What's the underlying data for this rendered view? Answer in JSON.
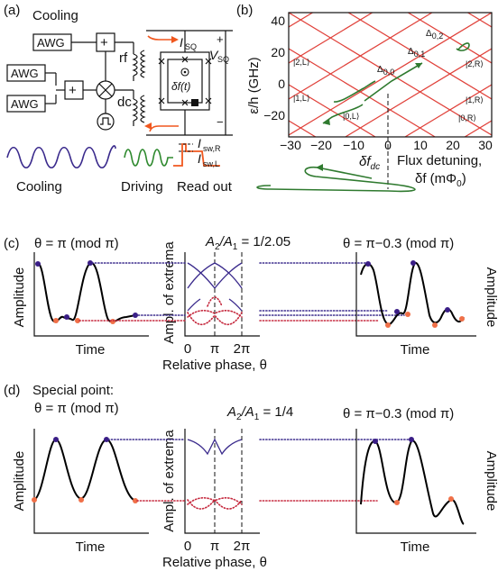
{
  "colors": {
    "cooling_wave": "#3a2a8c",
    "driving_wave": "#2f8a2f",
    "readout_wave": "#f0571e",
    "spectrum_lines": "#e0413a",
    "maxima": "#3a1d86",
    "minima": "#f07048",
    "trajectory": "#2f7a2f"
  },
  "panel_a": {
    "label": "(a)",
    "cooling": "Cooling",
    "awg": "AWG",
    "plus": "+",
    "times": "×",
    "rf": "rf",
    "dc": "dc",
    "isq_i": "I",
    "isq_sub": "SQ",
    "vsq_v": "V",
    "vsq_sub": "SQ",
    "plus_sign": "+",
    "minus_sign": "−",
    "flux": "δf(t)",
    "isw_r_main": "I",
    "isw_r_sub": "sw,R",
    "isw_l_main": "I",
    "isw_l_sub": "sw,L",
    "wave_labels": [
      "Cooling",
      "Driving",
      "Read out"
    ]
  },
  "panel_b": {
    "label": "(b)",
    "ylabel": "ε/h  (GHz)",
    "yticks": [
      "40",
      "20",
      "0",
      "−20"
    ],
    "xticks": [
      "−30",
      "−20",
      "−10",
      "0",
      "10",
      "20",
      "30"
    ],
    "xlabel_line1": "Flux detuning,",
    "xlabel_line2": "δf (mΦ",
    "xlabel_sub": "0",
    "xlabel_end": ")",
    "dfdc_main": "δf",
    "dfdc_sub": "dc",
    "delta_00": "Δ",
    "delta_00_sub": "0,0",
    "delta_01": "Δ",
    "delta_01_sub": "0,1",
    "delta_02": "Δ",
    "delta_02_sub": "0,2",
    "states": [
      "|2,L⟩",
      "|2,R⟩",
      "|1,L⟩",
      "|1,R⟩",
      "|0,L⟩",
      "|0,R⟩"
    ]
  },
  "panel_c": {
    "label": "(c)",
    "left_title": "θ = π  (mod π)",
    "center_title_a": "A",
    "center_title_sub2": "2",
    "center_title_slash": "/A",
    "center_title_sub1": "1",
    "center_title_value": " = 1/2.05",
    "right_title": "θ = π−0.3  (mod π)",
    "ylabel_left": "Amplitude",
    "ylabel_center": "Ampl. of extrema",
    "ylabel_right": "Amplitude",
    "xlabel_left": "Time",
    "xlabel_center": "Relative phase,  θ",
    "xlabel_right": "Time",
    "xticks": [
      "0",
      "π",
      "2π"
    ]
  },
  "panel_d": {
    "label": "(d)",
    "special": "Special point:",
    "left_title": "θ = π  (mod π)",
    "center_title_a": "A",
    "center_title_sub2": "2",
    "center_title_slash": "/A",
    "center_title_sub1": "1",
    "center_title_value": " = 1/4",
    "right_title": "θ = π−0.3  (mod π)",
    "ylabel_left": "Amplitude",
    "ylabel_center": "Ampl. of extrema",
    "ylabel_right": "Amplitude",
    "xlabel_left": "Time",
    "xlabel_center": "Relative phase,  θ",
    "xlabel_right": "Time",
    "xticks": [
      "0",
      "π",
      "2π"
    ]
  }
}
